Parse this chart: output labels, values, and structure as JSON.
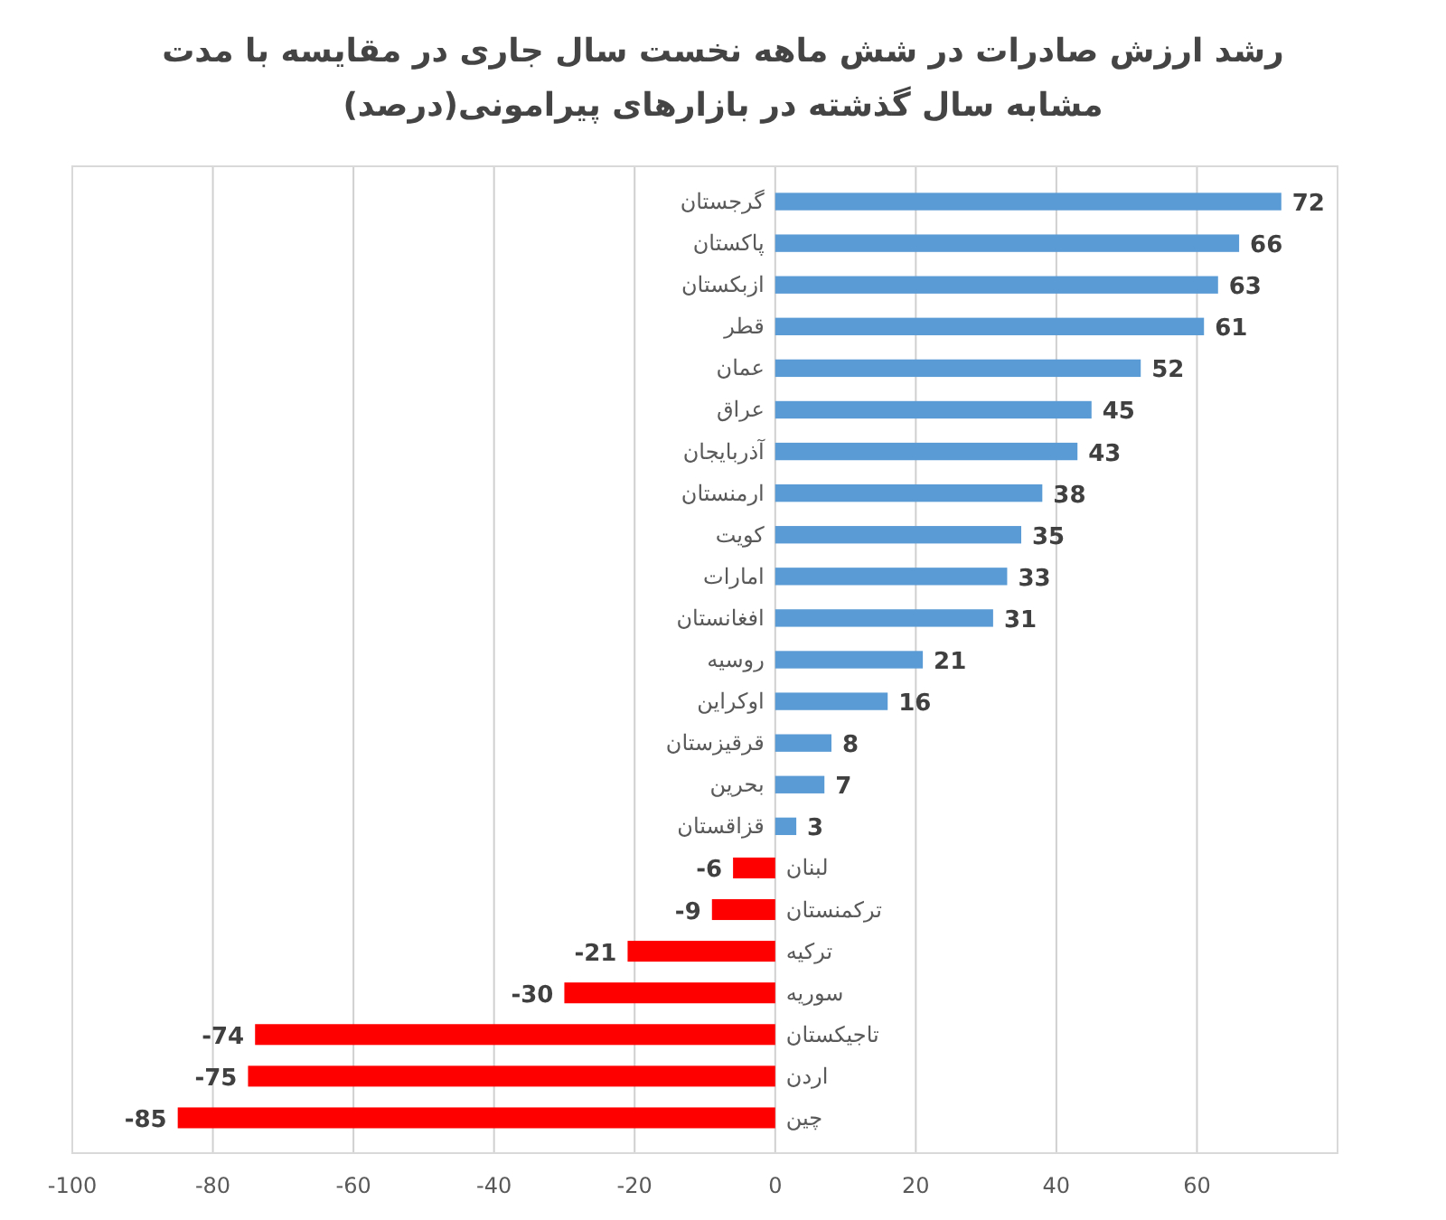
{
  "chart_data": {
    "type": "bar",
    "orientation": "horizontal",
    "title": "رشد ارزش صادرات در شش ماهه نخست سال جاری در مقایسه با مدت مشابه سال گذشته در بازارهای پیرامونی(درصد)",
    "categories": [
      "گرجستان",
      "پاکستان",
      "ازبکستان",
      "قطر",
      "عمان",
      "عراق",
      "آذربایجان",
      "ارمنستان",
      "کویت",
      "امارات",
      "افغانستان",
      "روسیه",
      "اوکراین",
      "قرقیزستان",
      "بحرین",
      "قزاقستان",
      "لبنان",
      "ترکمنستان",
      "ترکیه",
      "سوریه",
      "تاجیکستان",
      "اردن",
      "چین"
    ],
    "values": [
      72,
      66,
      63,
      61,
      52,
      45,
      43,
      38,
      35,
      33,
      31,
      21,
      16,
      8,
      7,
      3,
      -6,
      -9,
      -21,
      -30,
      -74,
      -75,
      -85
    ],
    "colors": [
      "#5b9bd5",
      "#5b9bd5",
      "#5b9bd5",
      "#5b9bd5",
      "#5b9bd5",
      "#5b9bd5",
      "#5b9bd5",
      "#5b9bd5",
      "#5b9bd5",
      "#5b9bd5",
      "#5b9bd5",
      "#5b9bd5",
      "#5b9bd5",
      "#5b9bd5",
      "#5b9bd5",
      "#5b9bd5",
      "#ff0000",
      "#ff0000",
      "#ff0000",
      "#ff0000",
      "#ff0000",
      "#ff0000",
      "#ff0000"
    ],
    "xlim": [
      -100,
      80
    ],
    "xticks": [
      -100,
      -80,
      -60,
      -40,
      -20,
      0,
      20,
      40,
      60
    ],
    "grid": "x",
    "data_labels": true
  }
}
